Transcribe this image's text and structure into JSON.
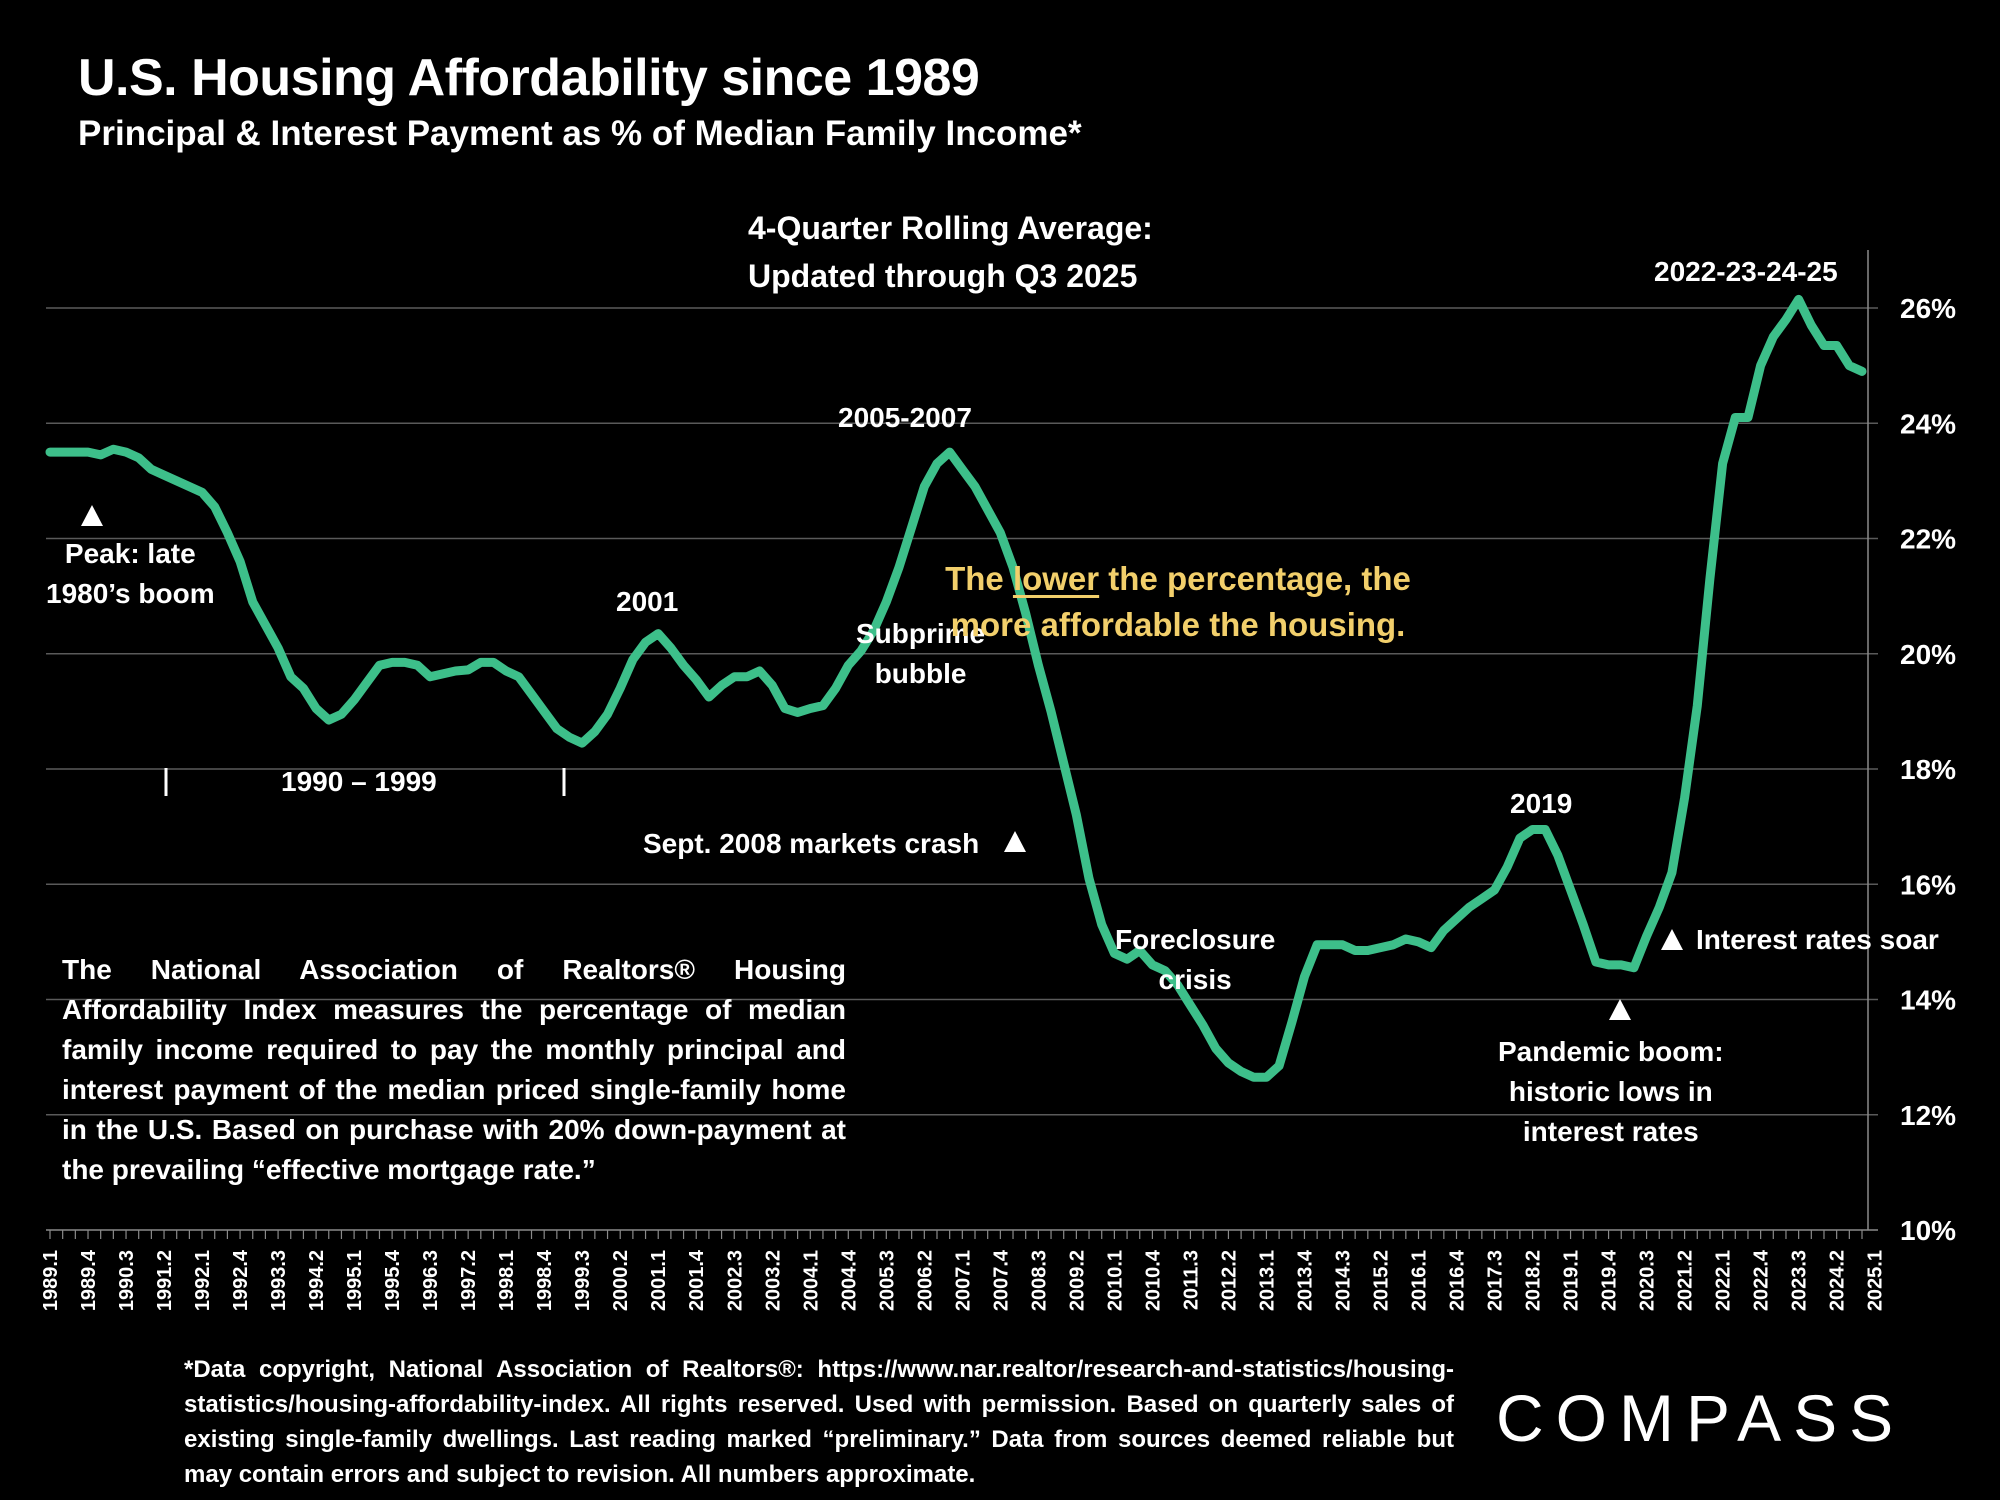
{
  "header": {
    "title": "U.S. Housing Affordability since 1989",
    "subtitle": "Principal & Interest Payment as % of Median Family Income*",
    "rolling_line1": "4-Quarter Rolling Average:",
    "rolling_line2": "Updated through Q3 2025"
  },
  "note": {
    "prefix": "The ",
    "underlined": "lower",
    "suffix": " the percentage, the",
    "line2": "more affordable the housing.",
    "color": "#f2cf6b"
  },
  "description": "The National Association of Realtors® Housing Affordability Index measures the percentage of median family income required to pay the monthly principal and interest payment of the median priced single-family home in the U.S. Based on purchase with 20% down-payment at the prevailing “effective mortgage rate.”",
  "footnote": "*Data copyright, National Association of Realtors®: https://www.nar.realtor/research-and-statistics/housing-statistics/housing-affordability-index. All rights reserved. Used with permission. Based on quarterly sales of existing single-family dwellings. Last reading marked “preliminary.” Data from sources deemed reliable but may contain errors and subject to revision. All numbers approximate.",
  "logo": "COMPASS",
  "annotations": {
    "peak_late_80s_line1": "Peak: late",
    "peak_late_80s_line2": "1980’s boom",
    "decade_1990s": "1990 – 1999",
    "y2001": "2001",
    "y2005_2007": "2005-2007",
    "subprime_line1": "Subprime",
    "subprime_line2": "bubble",
    "crash_2008": "Sept. 2008 markets crash",
    "foreclosure_line1": "Foreclosure",
    "foreclosure_line2": "crisis",
    "y2019": "2019",
    "pandemic_line1": "Pandemic  boom:",
    "pandemic_line2": "historic lows in",
    "pandemic_line3": "interest rates",
    "rates_soar": "Interest rates soar",
    "y2022_25": "2022-23-24-25"
  },
  "chart_data": {
    "type": "line",
    "title": "U.S. Housing Affordability since 1989",
    "subtitle": "Principal & Interest Payment as % of Median Family Income*",
    "xlabel": "",
    "ylabel": "",
    "ylim": [
      10,
      26
    ],
    "yticks": [
      "10%",
      "12%",
      "14%",
      "16%",
      "18%",
      "20%",
      "22%",
      "24%",
      "26%"
    ],
    "ytick_values": [
      10,
      12,
      14,
      16,
      18,
      20,
      22,
      24,
      26
    ],
    "y_axis_side": "right",
    "grid": true,
    "line_color": "#3dbf8a",
    "x_start": "1989.1",
    "x_end": "2025.3",
    "xtick_labels": [
      "1989.1",
      "1989.4",
      "1990.3",
      "1991.2",
      "1992.1",
      "1992.4",
      "1993.3",
      "1994.2",
      "1995.1",
      "1995.4",
      "1996.3",
      "1997.2",
      "1998.1",
      "1998.4",
      "1999.3",
      "2000.2",
      "2001.1",
      "2001.4",
      "2002.3",
      "2003.2",
      "2004.1",
      "2004.4",
      "2005.3",
      "2006.2",
      "2007.1",
      "2007.4",
      "2008.3",
      "2009.2",
      "2010.1",
      "2010.4",
      "2011.3",
      "2012.2",
      "2013.1",
      "2013.4",
      "2014.3",
      "2015.2",
      "2016.1",
      "2016.4",
      "2017.3",
      "2018.2",
      "2019.1",
      "2019.4",
      "2020.3",
      "2021.2",
      "2022.1",
      "2022.4",
      "2023.3",
      "2024.2",
      "2025.1"
    ],
    "series": [
      {
        "name": "P&I payment as % of median family income (4-quarter rolling avg)",
        "values": [
          23.5,
          23.5,
          23.5,
          23.5,
          23.45,
          23.55,
          23.5,
          23.4,
          23.2,
          23.1,
          23.0,
          22.9,
          22.8,
          22.55,
          22.1,
          21.6,
          20.9,
          20.5,
          20.1,
          19.6,
          19.4,
          19.05,
          18.85,
          18.95,
          19.2,
          19.5,
          19.8,
          19.85,
          19.85,
          19.8,
          19.6,
          19.65,
          19.7,
          19.72,
          19.85,
          19.85,
          19.7,
          19.6,
          19.3,
          19.0,
          18.7,
          18.55,
          18.45,
          18.65,
          18.95,
          19.4,
          19.9,
          20.2,
          20.35,
          20.1,
          19.8,
          19.55,
          19.25,
          19.45,
          19.6,
          19.6,
          19.7,
          19.45,
          19.05,
          18.98,
          19.05,
          19.1,
          19.4,
          19.8,
          20.05,
          20.4,
          20.9,
          21.5,
          22.2,
          22.9,
          23.3,
          23.5,
          23.2,
          22.9,
          22.5,
          22.1,
          21.5,
          20.7,
          19.8,
          19.0,
          18.1,
          17.2,
          16.1,
          15.3,
          14.8,
          14.7,
          14.85,
          14.6,
          14.5,
          14.25,
          13.9,
          13.55,
          13.15,
          12.9,
          12.75,
          12.65,
          12.65,
          12.85,
          13.6,
          14.4,
          14.95,
          14.95,
          14.95,
          14.85,
          14.85,
          14.9,
          14.95,
          15.05,
          15.0,
          14.9,
          15.2,
          15.4,
          15.6,
          15.75,
          15.9,
          16.3,
          16.8,
          16.95,
          16.95,
          16.5,
          15.9,
          15.3,
          14.65,
          14.6,
          14.6,
          14.55,
          15.1,
          15.6,
          16.2,
          17.5,
          19.1,
          21.3,
          23.3,
          24.1,
          24.1,
          25.0,
          25.5,
          25.8,
          26.15,
          25.7,
          25.35,
          25.35,
          25.0,
          24.9
        ]
      }
    ],
    "annotations": [
      {
        "text": "Peak: late 1980’s boom",
        "x": "1989.4"
      },
      {
        "text": "1990 – 1999",
        "x_range": [
          "1991.2",
          "1999.3"
        ]
      },
      {
        "text": "2001",
        "x": "2001.1"
      },
      {
        "text": "2005-2007",
        "x": "2006.4"
      },
      {
        "text": "Subprime bubble",
        "x": "2007.1"
      },
      {
        "text": "Sept. 2008 markets crash",
        "x": "2008.3"
      },
      {
        "text": "Foreclosure crisis",
        "x": "2011.2"
      },
      {
        "text": "2019",
        "x": "2019.1"
      },
      {
        "text": "Pandemic boom: historic lows in interest rates",
        "x": "2020.3"
      },
      {
        "text": "Interest rates soar",
        "x": "2021.2"
      },
      {
        "text": "2022-23-24-25",
        "x": "2024.2"
      }
    ]
  }
}
